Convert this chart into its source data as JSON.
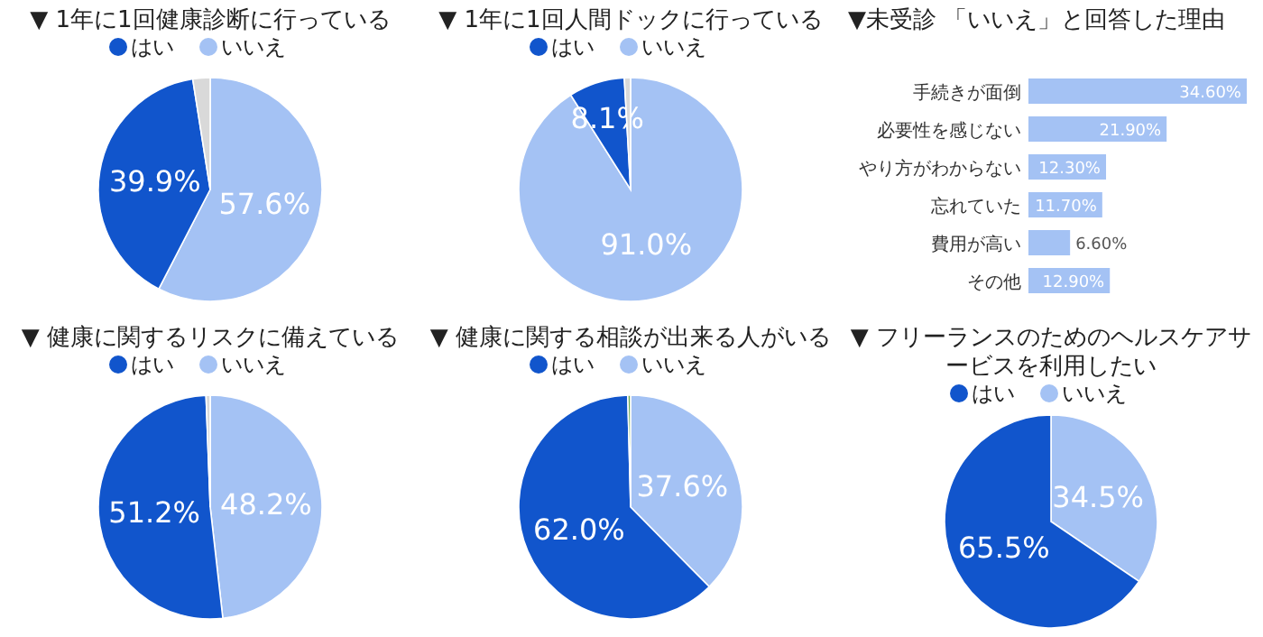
{
  "chart_data": [
    {
      "type": "pie",
      "title": "▼ 1年に1回健康診断に行っている",
      "categories": [
        "いいえ",
        "はい",
        null
      ],
      "values": [
        57.6,
        39.9,
        2.5
      ],
      "colors": [
        "#a4c2f4",
        "#1155cc",
        "#d9d9d9"
      ],
      "value_labels": [
        "57.6%",
        "39.9%",
        null
      ],
      "legend": "top"
    },
    {
      "type": "pie",
      "title": "▼ 1年に1回人間ドックに行っている",
      "categories": [
        "いいえ",
        "はい",
        null
      ],
      "values": [
        91.0,
        8.1,
        0.9
      ],
      "colors": [
        "#a4c2f4",
        "#1155cc",
        "#d9d9d9"
      ],
      "value_labels": [
        "91.0%",
        "8.1%",
        null
      ],
      "legend": "top"
    },
    {
      "type": "bar",
      "orientation": "horizontal",
      "title": "▼未受診 「いいえ」と回答した理由",
      "categories": [
        "手続きが面倒",
        "必要性を感じない",
        "やり方がわからない",
        "忘れていた",
        "費用が高い",
        "その他"
      ],
      "values": [
        34.6,
        21.9,
        12.3,
        11.7,
        6.6,
        12.9
      ],
      "color": "#a4c2f4",
      "value_labels": [
        "34.60%",
        "21.90%",
        "12.30%",
        "11.70%",
        "6.60%",
        "12.90%"
      ]
    },
    {
      "type": "pie",
      "title": "▼ 健康に関するリスクに備えている",
      "categories": [
        "いいえ",
        "はい",
        null
      ],
      "values": [
        48.2,
        51.2,
        0.6
      ],
      "colors": [
        "#a4c2f4",
        "#1155cc",
        "#d9d9d9"
      ],
      "value_labels": [
        "48.2%",
        "51.2%",
        null
      ],
      "legend": "top"
    },
    {
      "type": "pie",
      "title": "▼ 健康に関する相談が出来る人がいる",
      "categories": [
        "いいえ",
        "はい",
        null
      ],
      "values": [
        37.6,
        62.0,
        0.4
      ],
      "colors": [
        "#a4c2f4",
        "#1155cc",
        "#6aa84f"
      ],
      "value_labels": [
        "37.6%",
        "62.0%",
        null
      ],
      "legend": "top"
    },
    {
      "type": "pie",
      "title": "▼ フリーランスのためのヘルスケアサービスを利用したい",
      "categories": [
        "いいえ",
        "はい"
      ],
      "values": [
        34.5,
        65.5
      ],
      "colors": [
        "#a4c2f4",
        "#1155cc"
      ],
      "value_labels": [
        "34.5%",
        "65.5%"
      ],
      "legend": "top"
    }
  ]
}
